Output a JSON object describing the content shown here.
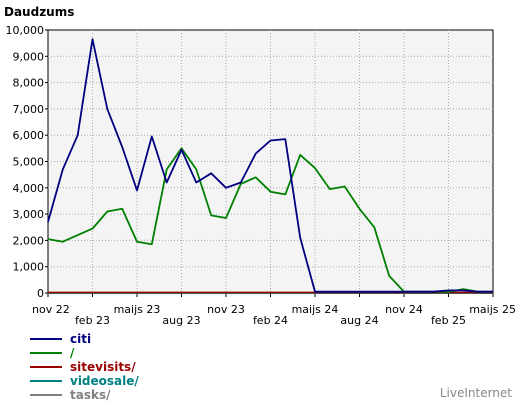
{
  "chart_data": {
    "type": "line",
    "title": "Daudzums",
    "ylim": [
      0,
      10000
    ],
    "y_ticks": [
      "0",
      "1,000",
      "2,000",
      "3,000",
      "4,000",
      "5,000",
      "6,000",
      "7,000",
      "8,000",
      "9,000",
      "10,000"
    ],
    "x_ticks": [
      "nov 22",
      "feb 23",
      "maijs 23",
      "aug 23",
      "nov 23",
      "feb 24",
      "maijs 24",
      "aug 24",
      "nov 24",
      "feb 25",
      "maijs 25"
    ],
    "grid": true,
    "legend_position": "bottom-left",
    "series": [
      {
        "name": "citi",
        "color": "#000080",
        "values": [
          2700,
          4700,
          6000,
          9650,
          7000,
          5550,
          3900,
          5950,
          4200,
          5450,
          4200,
          4550,
          4000,
          4200,
          5300,
          5800,
          5850,
          2100,
          50,
          50,
          50,
          50,
          50,
          50,
          50,
          50,
          50,
          100,
          100,
          50,
          50
        ]
      },
      {
        "name": "/",
        "color": "#008000",
        "values": [
          2050,
          1950,
          2200,
          2450,
          3100,
          3200,
          1950,
          1850,
          4700,
          5500,
          4700,
          2950,
          2850,
          4150,
          4400,
          3850,
          3750,
          5250,
          4750,
          3950,
          4050,
          3200,
          2500,
          650,
          50,
          50,
          50,
          50,
          150,
          50,
          50
        ]
      },
      {
        "name": "sitevisits/",
        "color": "#990000",
        "values": [
          20,
          20,
          20,
          20,
          20,
          20,
          20,
          20,
          20,
          20,
          20,
          20,
          20,
          20,
          20,
          20,
          20,
          20,
          20,
          20,
          20,
          20,
          20,
          20,
          20,
          20,
          20,
          20,
          20,
          20,
          20
        ]
      },
      {
        "name": "videosale/",
        "color": "#008080",
        "values": [
          0,
          0,
          0,
          0,
          0,
          0,
          0,
          0,
          0,
          0,
          0,
          0,
          0,
          0,
          0,
          0,
          0,
          0,
          0,
          0,
          0,
          0,
          0,
          0,
          0,
          0,
          0,
          0,
          0,
          0,
          0
        ]
      },
      {
        "name": "tasks/",
        "color": "#808080",
        "values": [
          0,
          0,
          0,
          0,
          0,
          0,
          0,
          0,
          0,
          0,
          0,
          0,
          0,
          0,
          0,
          0,
          0,
          0,
          0,
          0,
          0,
          0,
          0,
          0,
          0,
          0,
          0,
          0,
          0,
          0,
          0
        ]
      }
    ]
  },
  "footer": {
    "brand": "LiveInternet"
  }
}
